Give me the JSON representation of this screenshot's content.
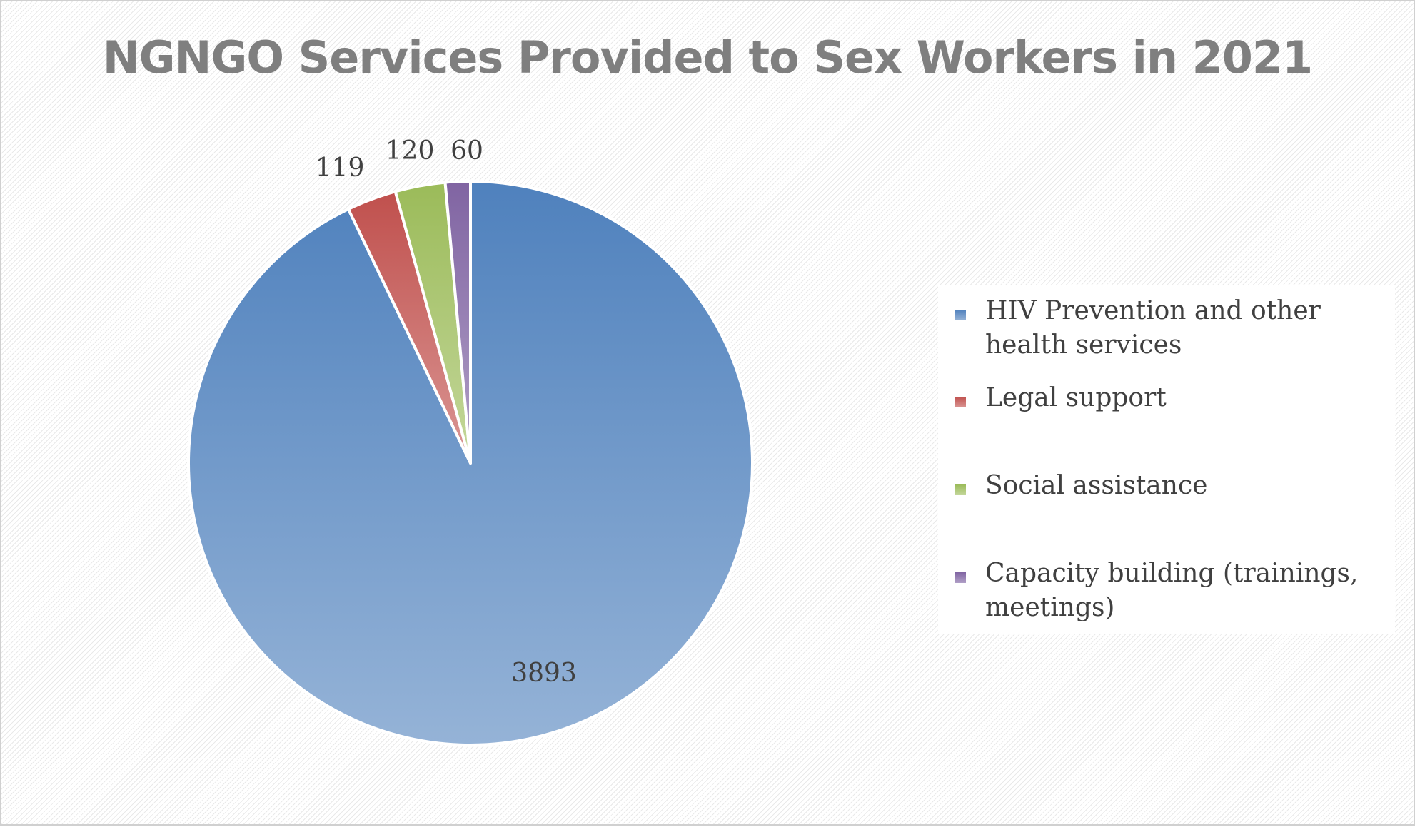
{
  "chart_data": {
    "type": "pie",
    "title": "NGNGO Services Provided to Sex Workers in 2021",
    "categories": [
      "HIV Prevention and other health services",
      "Legal support",
      "Social assistance",
      "Capacity building (trainings, meetings)"
    ],
    "values": [
      3893,
      119,
      120,
      60
    ],
    "data_labels": [
      "3893",
      "119",
      "120",
      "60"
    ],
    "colors": [
      "#4f81bd",
      "#c0504d",
      "#9bbb59",
      "#8064a2"
    ],
    "colors_light": [
      "#95b3d7",
      "#da9694",
      "#c4d79b",
      "#b1a0c7"
    ],
    "legend_position": "right",
    "start_angle": "12 o'clock",
    "direction": "clockwise"
  }
}
